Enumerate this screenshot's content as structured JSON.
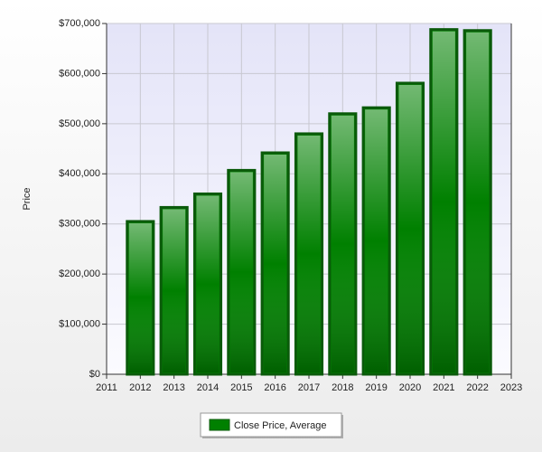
{
  "chart_data": {
    "type": "bar",
    "y_label": "Price",
    "x": [
      2012,
      2013,
      2014,
      2015,
      2016,
      2017,
      2018,
      2019,
      2020,
      2021,
      2022
    ],
    "series": [
      {
        "name": "Close Price, Average",
        "color": "#008000",
        "values": [
          305000,
          333000,
          360000,
          407000,
          442000,
          480000,
          520000,
          532000,
          581000,
          688000,
          686000
        ]
      }
    ],
    "xlim": [
      2011,
      2023
    ],
    "xticks": [
      2011,
      2012,
      2013,
      2014,
      2015,
      2016,
      2017,
      2018,
      2019,
      2020,
      2021,
      2022,
      2023
    ],
    "ylim": [
      0,
      700000
    ],
    "yticks": [
      {
        "value": 0,
        "label": "$0"
      },
      {
        "value": 100000,
        "label": "$100,000"
      },
      {
        "value": 200000,
        "label": "$200,000"
      },
      {
        "value": 300000,
        "label": "$300,000"
      },
      {
        "value": 400000,
        "label": "$400,000"
      },
      {
        "value": 500000,
        "label": "$500,000"
      },
      {
        "value": 600000,
        "label": "$600,000"
      },
      {
        "value": 700000,
        "label": "$700,000"
      }
    ],
    "grid": true,
    "legend": "bottom"
  }
}
